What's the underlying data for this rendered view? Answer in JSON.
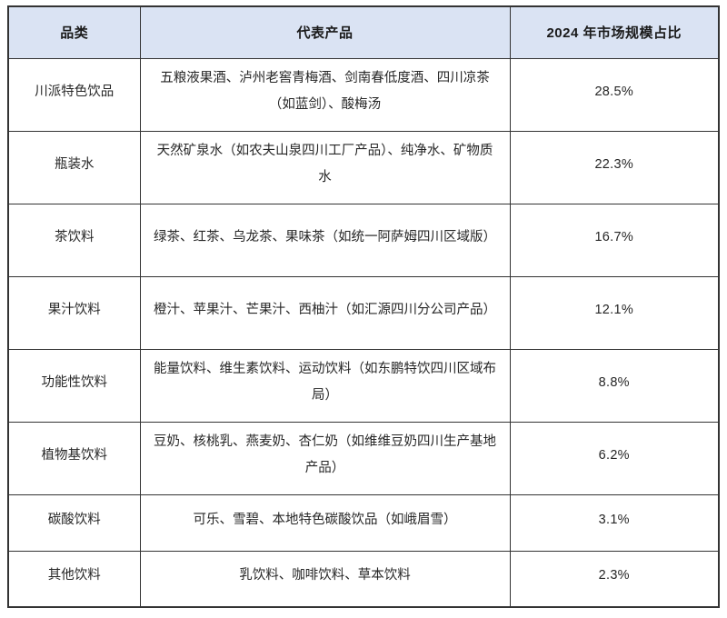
{
  "table": {
    "headers": {
      "category": "品类",
      "products": "代表产品",
      "share": "2024 年市场规模占比"
    },
    "rows": [
      {
        "category": "川派特色饮品",
        "products": "五粮液果酒、泸州老窖青梅酒、剑南春低度酒、四川凉茶（如蓝剑）、酸梅汤",
        "share": "28.5%"
      },
      {
        "category": "瓶装水",
        "products": "天然矿泉水（如农夫山泉四川工厂产品）、纯净水、矿物质水",
        "share": "22.3%"
      },
      {
        "category": "茶饮料",
        "products": "绿茶、红茶、乌龙茶、果味茶（如统一阿萨姆四川区域版）",
        "share": "16.7%"
      },
      {
        "category": "果汁饮料",
        "products": "橙汁、苹果汁、芒果汁、西柚汁（如汇源四川分公司产品）",
        "share": "12.1%"
      },
      {
        "category": "功能性饮料",
        "products": "能量饮料、维生素饮料、运动饮料（如东鹏特饮四川区域布局）",
        "share": "8.8%"
      },
      {
        "category": "植物基饮料",
        "products": "豆奶、核桃乳、燕麦奶、杏仁奶（如维维豆奶四川生产基地产品）",
        "share": "6.2%"
      },
      {
        "category": "碳酸饮料",
        "products": "可乐、雪碧、本地特色碳酸饮品（如峨眉雪）",
        "share": "3.1%"
      },
      {
        "category": "其他饮料",
        "products": "乳饮料、咖啡饮料、草本饮料",
        "share": "2.3%"
      }
    ],
    "colors": {
      "header_bg": "#dae3f3",
      "border": "#333333",
      "text": "#262626"
    }
  }
}
